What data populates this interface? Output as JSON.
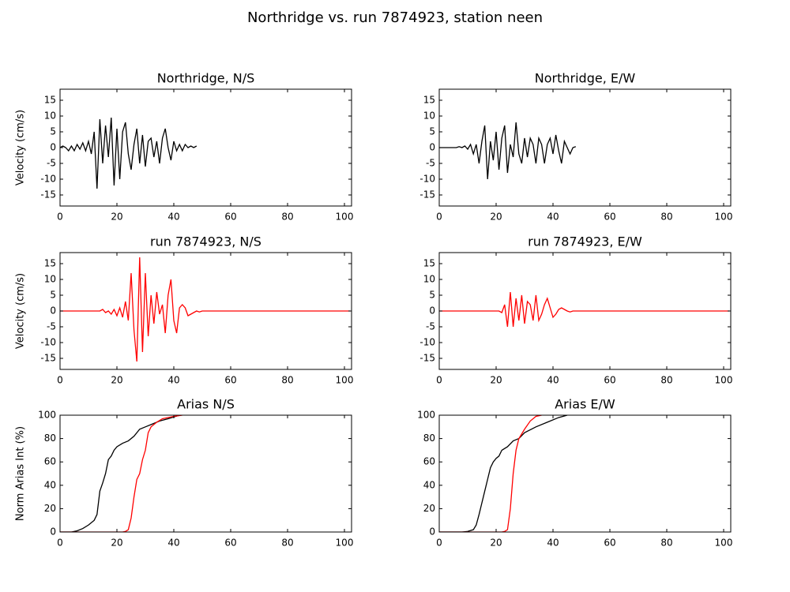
{
  "title": "Northridge vs. run 7874923, station neen",
  "chart_data": [
    {
      "type": "line",
      "title": "Northridge, N/S",
      "ylabel": "Velocity (cm/s)",
      "xlim": [
        0,
        102.5
      ],
      "ylim": [
        -18.5,
        18.5
      ],
      "xticks": [
        0,
        20,
        40,
        60,
        80,
        100
      ],
      "yticks": [
        -15,
        -10,
        -5,
        0,
        5,
        10,
        15
      ],
      "series": [
        {
          "color": "#000000",
          "x": [
            0,
            1,
            2,
            3,
            4,
            5,
            6,
            7,
            8,
            9,
            10,
            11,
            12,
            13,
            14,
            15,
            16,
            17,
            18,
            19,
            20,
            21,
            22,
            23,
            24,
            25,
            26,
            27,
            28,
            29,
            30,
            31,
            32,
            33,
            34,
            35,
            36,
            37,
            38,
            39,
            40,
            41,
            42,
            43,
            44,
            45,
            46,
            47,
            48
          ],
          "values": [
            0,
            0.5,
            0,
            -1,
            0.5,
            -1,
            1,
            -0.5,
            1.5,
            -1,
            2,
            -2,
            5,
            -13,
            9,
            -5,
            7,
            -3,
            9.5,
            -12,
            6,
            -10,
            5,
            8,
            -2,
            -7,
            1,
            6,
            -5,
            4,
            -6,
            2,
            3,
            -3,
            2,
            -5,
            3,
            6,
            0,
            -4,
            2,
            -1,
            1,
            -1,
            1,
            0,
            0.5,
            0,
            0.5
          ]
        }
      ]
    },
    {
      "type": "line",
      "title": "Northridge, E/W",
      "xlim": [
        0,
        102.5
      ],
      "ylim": [
        -18.5,
        18.5
      ],
      "xticks": [
        0,
        20,
        40,
        60,
        80,
        100
      ],
      "yticks": [
        -15,
        -10,
        -5,
        0,
        5,
        10,
        15
      ],
      "series": [
        {
          "color": "#000000",
          "x": [
            0,
            1,
            2,
            3,
            4,
            5,
            6,
            7,
            8,
            9,
            10,
            11,
            12,
            13,
            14,
            15,
            16,
            17,
            18,
            19,
            20,
            21,
            22,
            23,
            24,
            25,
            26,
            27,
            28,
            29,
            30,
            31,
            32,
            33,
            34,
            35,
            36,
            37,
            38,
            39,
            40,
            41,
            42,
            43,
            44,
            45,
            46,
            47,
            48
          ],
          "values": [
            0,
            0,
            0,
            0,
            0,
            0,
            0,
            0.3,
            0,
            0.5,
            -0.5,
            1,
            -2,
            1,
            -5,
            2,
            7,
            -10,
            2,
            -4,
            5,
            -7,
            3,
            7,
            -8,
            1,
            -3,
            8,
            -2,
            -5,
            3,
            -3,
            3,
            1,
            -5,
            3,
            1,
            -5,
            1,
            3,
            -2,
            4,
            -1,
            -5,
            2,
            0,
            -2,
            0,
            0.3
          ]
        }
      ]
    },
    {
      "type": "line",
      "title": "run 7874923, N/S",
      "ylabel": "Velocity (cm/s)",
      "xlim": [
        0,
        102.5
      ],
      "ylim": [
        -18.5,
        18.5
      ],
      "xticks": [
        0,
        20,
        40,
        60,
        80,
        100
      ],
      "yticks": [
        -15,
        -10,
        -5,
        0,
        5,
        10,
        15
      ],
      "series": [
        {
          "color": "#ff0000",
          "x": [
            0,
            5,
            10,
            13,
            14,
            15,
            16,
            17,
            18,
            19,
            20,
            21,
            22,
            23,
            24,
            25,
            26,
            27,
            28,
            29,
            30,
            31,
            32,
            33,
            34,
            35,
            36,
            37,
            38,
            39,
            40,
            41,
            42,
            43,
            44,
            45,
            46,
            47,
            48,
            49,
            50,
            55,
            60,
            65,
            70,
            75,
            80,
            85,
            90,
            95,
            100,
            102
          ],
          "values": [
            0,
            0,
            0,
            0,
            0,
            0.5,
            -0.5,
            0,
            -1,
            0.5,
            -1.5,
            1,
            -2,
            3,
            -3,
            12,
            -6,
            -16,
            17,
            -13,
            12,
            -8,
            5,
            -4,
            6,
            -1,
            2,
            -7,
            5,
            10,
            -3,
            -7,
            1,
            2,
            1,
            -1.5,
            -1,
            -0.5,
            0,
            -0.3,
            0,
            0,
            0,
            0,
            0,
            0,
            0,
            0,
            0,
            0,
            0,
            0
          ]
        }
      ]
    },
    {
      "type": "line",
      "title": "run 7874923, E/W",
      "xlim": [
        0,
        102.5
      ],
      "ylim": [
        -18.5,
        18.5
      ],
      "xticks": [
        0,
        20,
        40,
        60,
        80,
        100
      ],
      "yticks": [
        -15,
        -10,
        -5,
        0,
        5,
        10,
        15
      ],
      "series": [
        {
          "color": "#ff0000",
          "x": [
            0,
            5,
            10,
            13,
            14,
            15,
            16,
            17,
            18,
            19,
            20,
            21,
            22,
            23,
            24,
            25,
            26,
            27,
            28,
            29,
            30,
            31,
            32,
            33,
            34,
            35,
            36,
            37,
            38,
            39,
            40,
            41,
            42,
            43,
            44,
            45,
            46,
            47,
            48,
            49,
            50,
            55,
            60,
            65,
            70,
            75,
            80,
            85,
            90,
            95,
            100,
            102
          ],
          "values": [
            0,
            0,
            0,
            0,
            0,
            0,
            0,
            0,
            0,
            0,
            0,
            0,
            -0.5,
            2,
            -5,
            6,
            -5,
            4,
            -3,
            5,
            -4,
            3,
            2,
            -3,
            5,
            -3,
            -1,
            2,
            4,
            1,
            -2,
            -1,
            0.5,
            1,
            0.5,
            0,
            -0.3,
            0,
            0,
            0,
            0,
            0,
            0,
            0,
            0,
            0,
            0,
            0,
            0,
            0,
            0,
            0
          ]
        }
      ]
    },
    {
      "type": "line",
      "title": "Arias N/S",
      "ylabel": "Norm Arias Int (%)",
      "xlim": [
        0,
        102.5
      ],
      "ylim": [
        0,
        100
      ],
      "xticks": [
        0,
        20,
        40,
        60,
        80,
        100
      ],
      "yticks": [
        0,
        20,
        40,
        60,
        80,
        100
      ],
      "series": [
        {
          "color": "#000000",
          "x": [
            0,
            4,
            6,
            8,
            10,
            12,
            13,
            14,
            15,
            16,
            17,
            18,
            19,
            20,
            22,
            24,
            26,
            28,
            30,
            32,
            35,
            38,
            42
          ],
          "values": [
            0,
            0,
            1,
            3,
            6,
            10,
            15,
            35,
            42,
            50,
            62,
            65,
            70,
            73,
            76,
            78,
            82,
            88,
            90,
            92,
            95,
            97,
            100
          ]
        },
        {
          "color": "#ff0000",
          "x": [
            0,
            22,
            23,
            24,
            25,
            26,
            27,
            28,
            29,
            30,
            31,
            32,
            34,
            36,
            40,
            43
          ],
          "values": [
            0,
            0,
            0.5,
            2,
            12,
            30,
            45,
            50,
            62,
            70,
            85,
            90,
            94,
            97,
            99,
            100
          ]
        }
      ]
    },
    {
      "type": "line",
      "title": "Arias E/W",
      "xlim": [
        0,
        102.5
      ],
      "ylim": [
        0,
        100
      ],
      "xticks": [
        0,
        20,
        40,
        60,
        80,
        100
      ],
      "yticks": [
        0,
        20,
        40,
        60,
        80,
        100
      ],
      "series": [
        {
          "color": "#000000",
          "x": [
            0,
            8,
            10,
            12,
            13,
            14,
            15,
            16,
            17,
            18,
            19,
            20,
            21,
            22,
            24,
            26,
            28,
            30,
            34,
            38,
            42,
            45
          ],
          "values": [
            0,
            0,
            0.5,
            2,
            6,
            15,
            25,
            35,
            45,
            55,
            60,
            63,
            65,
            70,
            73,
            78,
            80,
            85,
            90,
            94,
            98,
            100
          ]
        },
        {
          "color": "#ff0000",
          "x": [
            0,
            22,
            23,
            24,
            25,
            26,
            27,
            28,
            30,
            32,
            34,
            36
          ],
          "values": [
            0,
            0,
            0.5,
            2,
            20,
            50,
            70,
            80,
            88,
            95,
            99,
            100
          ]
        }
      ]
    }
  ]
}
